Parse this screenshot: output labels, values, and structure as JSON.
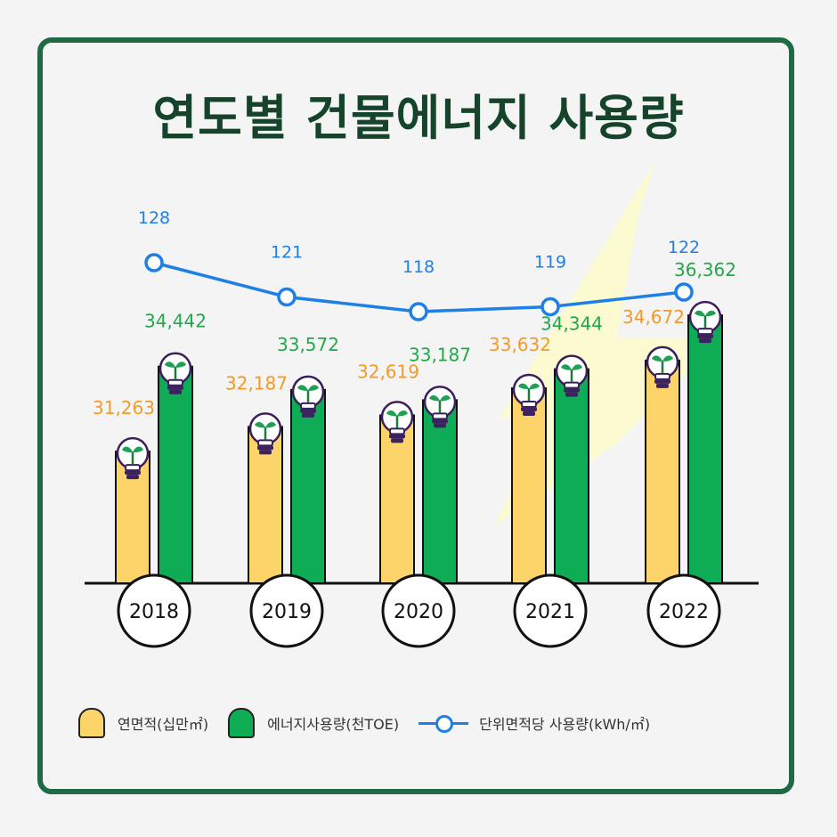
{
  "title": "연도별 건물에너지 사용량",
  "chart_data": {
    "type": "bar",
    "categories": [
      "2018",
      "2019",
      "2020",
      "2021",
      "2022"
    ],
    "series": [
      {
        "name": "연면적(십만㎡)",
        "values": [
          31263,
          32187,
          32619,
          33632,
          34672
        ],
        "labels": [
          "31,263",
          "32,187",
          "32,619",
          "33,632",
          "34,672"
        ],
        "color": "#fcd46a",
        "label_color": "#f39a26"
      },
      {
        "name": "에너지사용량(천TOE)",
        "values": [
          34442,
          33572,
          33187,
          34344,
          36362
        ],
        "labels": [
          "34,442",
          "33,572",
          "33,187",
          "34,344",
          "36,362"
        ],
        "color": "#0fac56",
        "label_color": "#22a84a"
      }
    ],
    "line_series": {
      "name": "단위면적당 사용량(kWh/㎡)",
      "type": "line",
      "values": [
        128,
        121,
        118,
        119,
        122
      ],
      "color": "#1e7fe6"
    },
    "legend_position": "bottom",
    "grid": false
  },
  "legend": {
    "area": "연면적(십만㎡)",
    "energy": "에너지사용량(천TOE)",
    "unit": "단위면적당 사용량(kWh/㎡)"
  },
  "colors": {
    "frame": "#1f6a45",
    "title": "#15442b",
    "bulb_glass": "#ffffff",
    "bulb_outline": "#3a1f5c",
    "lightning": "#fbfad0"
  }
}
